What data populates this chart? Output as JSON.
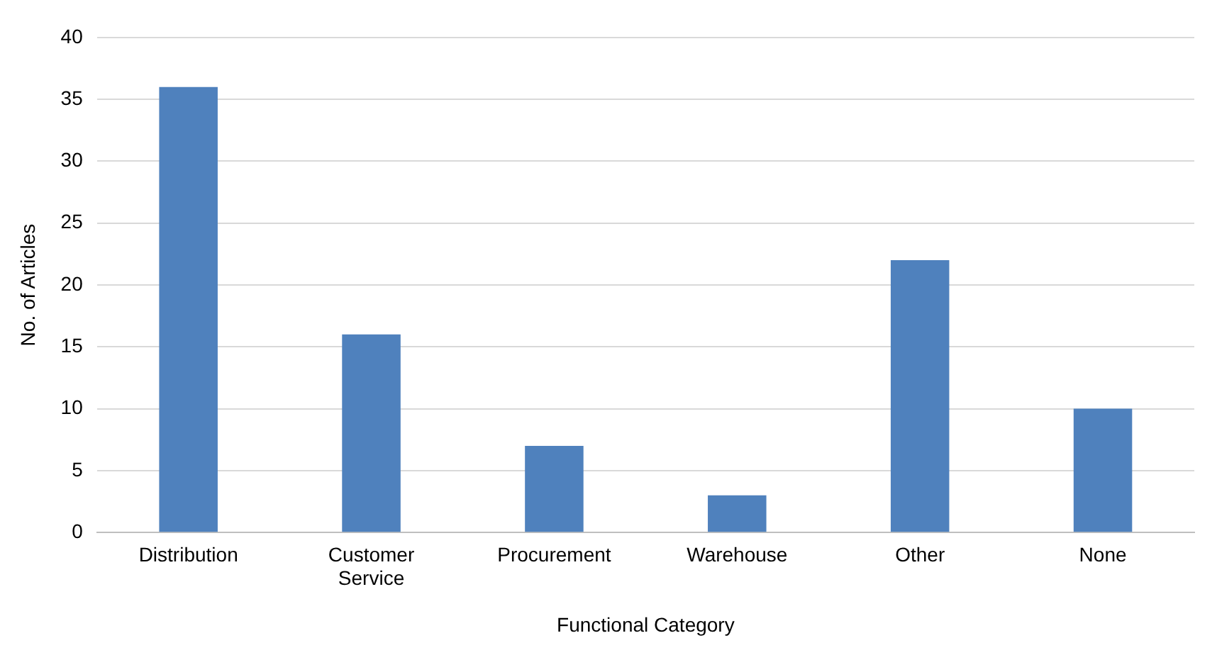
{
  "chart_data": {
    "type": "bar",
    "xlabel": "Functional Category",
    "ylabel": "No. of Articles",
    "categories": [
      "Distribution",
      "Customer Service",
      "Procurement",
      "Warehouse",
      "Other",
      "None"
    ],
    "values": [
      36,
      16,
      7,
      3,
      22,
      10
    ],
    "color": "#4f81bd",
    "ylim": [
      0,
      40
    ],
    "yticks": [
      0,
      5,
      10,
      15,
      20,
      25,
      30,
      35,
      40
    ],
    "grid": "y",
    "legend": false
  }
}
